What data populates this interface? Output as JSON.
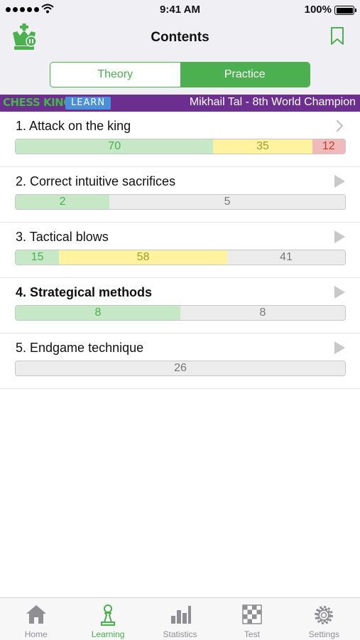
{
  "status_bar": {
    "time": "9:41 AM",
    "battery": "100%"
  },
  "header": {
    "title": "Contents"
  },
  "segments": [
    {
      "label": "Theory",
      "active": false
    },
    {
      "label": "Practice",
      "active": true
    }
  ],
  "banner": {
    "brand": "CHESS KING",
    "badge": "LEARN",
    "title": "Mikhail Tal - 8th World Champion"
  },
  "chapters": [
    {
      "label": "1. Attack on the king",
      "bold": false,
      "arrow": "chevron-right-icon",
      "progress": [
        {
          "value": "70",
          "color": "green",
          "fraction": 0.6
        },
        {
          "value": "35",
          "color": "yellow",
          "fraction": 0.3
        },
        {
          "value": "12",
          "color": "red",
          "fraction": 0.1
        }
      ]
    },
    {
      "label": "2. Correct intuitive sacrifices",
      "bold": false,
      "arrow": "play-icon",
      "progress": [
        {
          "value": "2",
          "color": "green",
          "fraction": 0.285
        },
        {
          "value": "5",
          "color": "gray",
          "fraction": 0.715
        }
      ]
    },
    {
      "label": "3. Tactical blows",
      "bold": false,
      "arrow": "play-icon",
      "progress": [
        {
          "value": "15",
          "color": "green",
          "fraction": 0.132
        },
        {
          "value": "58",
          "color": "yellow",
          "fraction": 0.51
        },
        {
          "value": "41",
          "color": "gray",
          "fraction": 0.358
        }
      ]
    },
    {
      "label": "4. Strategical methods",
      "bold": true,
      "arrow": "play-icon",
      "progress": [
        {
          "value": "8",
          "color": "green",
          "fraction": 0.5
        },
        {
          "value": "8",
          "color": "gray",
          "fraction": 0.5
        }
      ]
    },
    {
      "label": "5. Endgame technique",
      "bold": false,
      "arrow": "play-icon",
      "progress": [
        {
          "value": "26",
          "color": "gray",
          "fraction": 1.0
        }
      ]
    }
  ],
  "tabbar": [
    {
      "label": "Home",
      "icon": "home-icon",
      "active": false
    },
    {
      "label": "Learning",
      "icon": "pawn-icon",
      "active": true
    },
    {
      "label": "Statistics",
      "icon": "bar-chart-icon",
      "active": false
    },
    {
      "label": "Test",
      "icon": "chessboard-icon",
      "active": false
    },
    {
      "label": "Settings",
      "icon": "gear-icon",
      "active": false
    }
  ],
  "colors": {
    "accent": "#4caf50",
    "banner": "#6c2f8f",
    "learn_badge": "#4a90d9"
  }
}
